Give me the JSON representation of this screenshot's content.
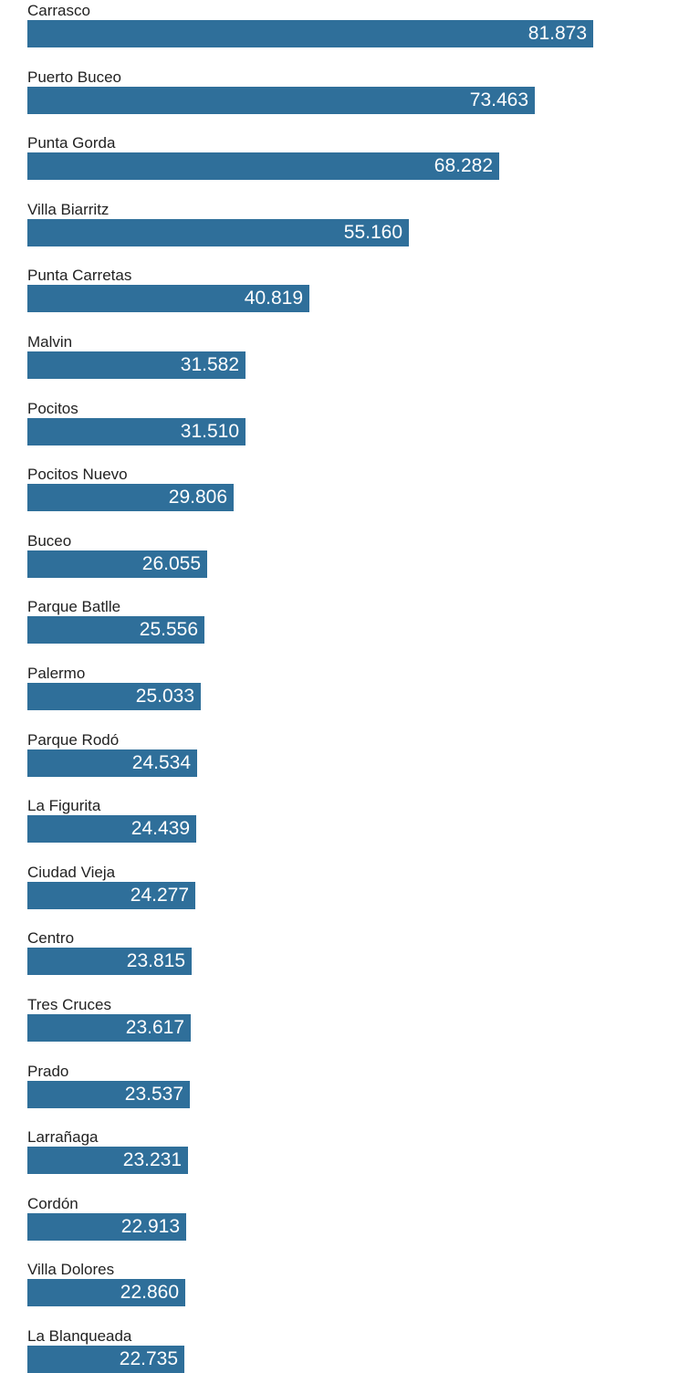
{
  "chart_data": {
    "type": "bar",
    "orientation": "horizontal",
    "categories": [
      "Carrasco",
      "Puerto Buceo",
      "Punta Gorda",
      "Villa Biarritz",
      "Punta Carretas",
      "Malvin",
      "Pocitos",
      "Pocitos Nuevo",
      "Buceo",
      "Parque Batlle",
      "Palermo",
      "Parque Rodó",
      "La Figurita",
      "Ciudad Vieja",
      "Centro",
      "Tres Cruces",
      "Prado",
      "Larrañaga",
      "Cordón",
      "Villa Dolores",
      "La Blanqueada"
    ],
    "values": [
      81.873,
      73.463,
      68.282,
      55.16,
      40.819,
      31.582,
      31.51,
      29.806,
      26.055,
      25.556,
      25.033,
      24.534,
      24.439,
      24.277,
      23.815,
      23.617,
      23.537,
      23.231,
      22.913,
      22.86,
      22.735
    ],
    "value_labels": [
      "81.873",
      "73.463",
      "68.282",
      "55.160",
      "40.819",
      "31.582",
      "31.510",
      "29.806",
      "26.055",
      "25.556",
      "25.033",
      "24.534",
      "24.439",
      "24.277",
      "23.815",
      "23.617",
      "23.537",
      "23.231",
      "22.913",
      "22.860",
      "22.735"
    ],
    "title": "",
    "xlabel": "",
    "ylabel": "",
    "xlim": [
      0,
      81.873
    ],
    "grid": false,
    "bar_color": "#2f6f9a",
    "label_color": "#ffffff",
    "legend": "none"
  }
}
